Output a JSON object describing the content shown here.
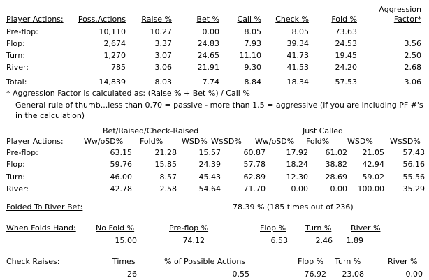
{
  "summary": {
    "header": [
      "Player Actions:",
      "Poss.Actions",
      "Raise %",
      "Bet %",
      "Call %",
      "Check %",
      "Fold %",
      "Aggression Factor*"
    ],
    "rows": [
      [
        "Pre-flop:",
        "10,110",
        "10.27",
        "0.00",
        "8.05",
        "8.05",
        "73.63"
      ],
      [
        "Flop:",
        "2,674",
        "3.37",
        "24.83",
        "7.93",
        "39.34",
        "24.53",
        "3.56"
      ],
      [
        "Turn:",
        "1,270",
        "3.07",
        "24.65",
        "11.10",
        "41.73",
        "19.45",
        "2.50"
      ],
      [
        "River:",
        "785",
        "3.06",
        "21.91",
        "9.30",
        "41.53",
        "24.20",
        "2.68"
      ]
    ],
    "total": [
      "Total:",
      "14,839",
      "8.03",
      "7.74",
      "8.84",
      "18.34",
      "57.53",
      "3.06"
    ]
  },
  "notes": [
    "* Aggression Factor is calculated as: (Raise % + Bet %) / Call %",
    "General rule of thumb...less than 0.70 = passive - more than 1.5 = aggressive (if you are including PF #'s in the calculation)"
  ],
  "showdown": {
    "groups": [
      "Bet/Raised/Check-Raised",
      "Just Called"
    ],
    "header": [
      "Player Actions:",
      "Ww/oSD%",
      "Fold%",
      "WSD%",
      "W$SD%",
      "Ww/oSD%",
      "Fold%",
      "WSD%",
      "W$SD%"
    ],
    "rows": [
      [
        "Pre-flop:",
        "63.15",
        "21.28",
        "15.57",
        "60.87",
        "17.92",
        "61.02",
        "21.05",
        "57.43"
      ],
      [
        "Flop:",
        "59.76",
        "15.85",
        "24.39",
        "57.78",
        "18.24",
        "38.82",
        "42.94",
        "56.16"
      ],
      [
        "Turn:",
        "46.00",
        "8.57",
        "45.43",
        "62.89",
        "12.30",
        "28.69",
        "59.02",
        "55.56"
      ],
      [
        "River:",
        "42.78",
        "2.58",
        "54.64",
        "71.70",
        "0.00",
        "0.00",
        "100.00",
        "35.29"
      ]
    ]
  },
  "folded_to_river": {
    "label": "Folded To River Bet:",
    "value": "78.39 % (185 times out of 236)"
  },
  "when_folds": {
    "header": [
      "When Folds Hand:",
      "No Fold %",
      "Pre-flop %",
      "Flop %",
      "Turn %",
      "River %"
    ],
    "values": [
      "15.00",
      "74.12",
      "6.53",
      "2.46",
      "1.89"
    ]
  },
  "check_raises": {
    "header": [
      "Check Raises:",
      "Times",
      "% of Possible Actions",
      "Flop %",
      "Turn %",
      "River %"
    ],
    "values": [
      "26",
      "0.55",
      "76.92",
      "23.08",
      "0.00"
    ]
  }
}
